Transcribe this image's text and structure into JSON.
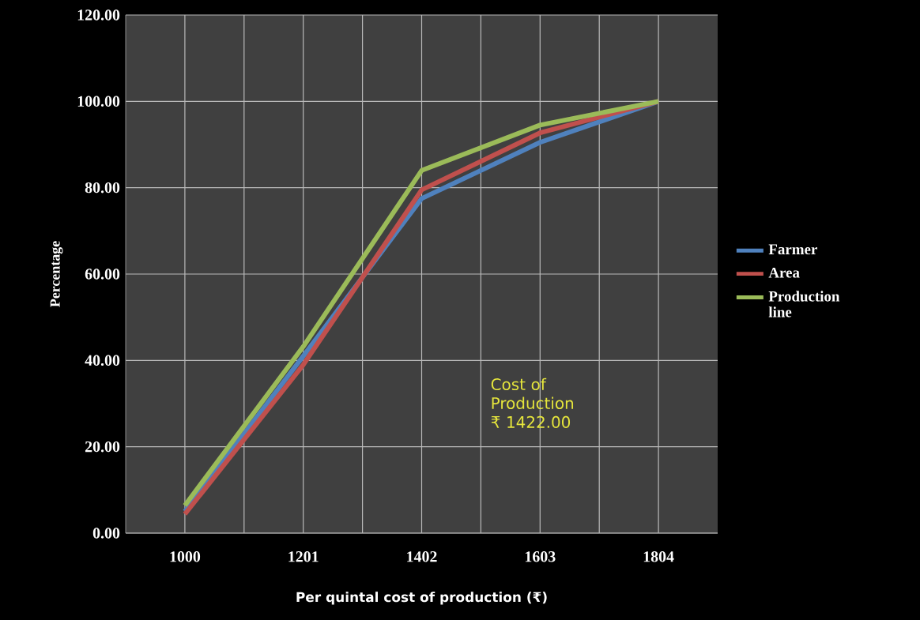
{
  "chart_data": {
    "type": "line",
    "xlabel": "Per quintal cost of production (₹)",
    "ylabel": "Percentage",
    "categories": [
      "1000",
      "1201",
      "1402",
      "1603",
      "1804"
    ],
    "series": [
      {
        "name": "Farmer",
        "color": "#4f81bd",
        "values": [
          5,
          41,
          77.5,
          90.5,
          100
        ]
      },
      {
        "name": "Area",
        "color": "#c0504d",
        "values": [
          4.4,
          39,
          79.5,
          92.7,
          100
        ]
      },
      {
        "name": "Production line",
        "color": "#9bbb59",
        "values": [
          6.4,
          43.2,
          84,
          94.5,
          100
        ]
      }
    ],
    "ylim": [
      0,
      120
    ],
    "yticks": [
      {
        "value": 0,
        "label": "0.00"
      },
      {
        "value": 20,
        "label": "20.00"
      },
      {
        "value": 40,
        "label": "40.00"
      },
      {
        "value": 60,
        "label": "60.00"
      },
      {
        "value": 80,
        "label": "80.00"
      },
      {
        "value": 100,
        "label": "100.00"
      },
      {
        "value": 120,
        "label": "120.00"
      }
    ],
    "annotations": [
      "Cost of Production ₹ 1422.00"
    ],
    "grid": true,
    "legend": "right",
    "marker": "none",
    "line_style": "solid"
  }
}
